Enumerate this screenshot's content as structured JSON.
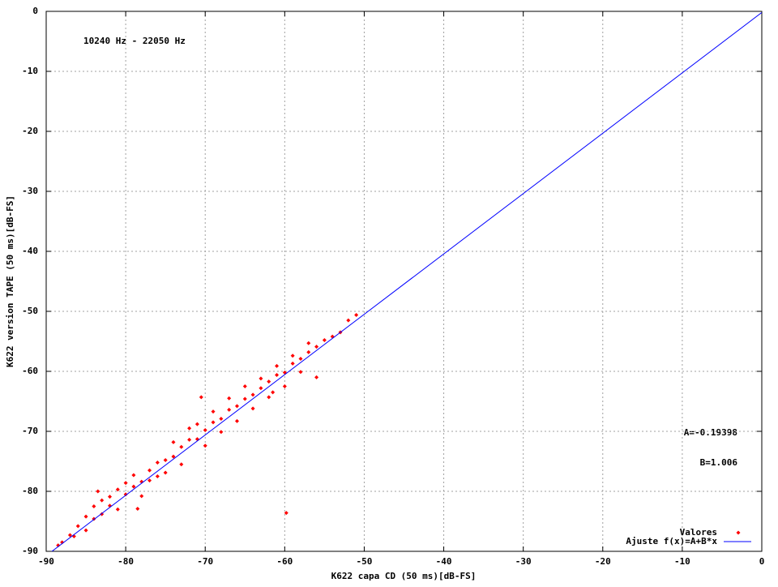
{
  "chart_data": {
    "type": "scatter",
    "xlabel": "K622 capa CD (50 ms)[dB-FS]",
    "ylabel": "K622 version TAPE (50 ms)[dB-FS]",
    "annotations": [
      "10240 Hz - 22050 Hz",
      "A=-0.19398",
      "B=1.006"
    ],
    "xlim": [
      -90,
      0
    ],
    "ylim": [
      -90,
      0
    ],
    "xticks": [
      -90,
      -80,
      -70,
      -60,
      -50,
      -40,
      -30,
      -20,
      -10,
      0
    ],
    "yticks": [
      -90,
      -80,
      -70,
      -60,
      -50,
      -40,
      -30,
      -20,
      -10,
      0
    ],
    "grid": true,
    "legend": "lower right",
    "series": [
      {
        "name": "Valores",
        "color": "#ff0000",
        "style": "points",
        "x": [
          -88,
          -87,
          -86,
          -85,
          -85,
          -84,
          -84,
          -83,
          -83,
          -82,
          -82,
          -81,
          -81,
          -80,
          -80,
          -79,
          -79,
          -78,
          -78,
          -77,
          -77,
          -76,
          -76,
          -75,
          -75,
          -74,
          -74,
          -73,
          -73,
          -72,
          -72,
          -71,
          -71,
          -70,
          -70,
          -69,
          -69,
          -68,
          -68,
          -67,
          -67,
          -66,
          -66,
          -65,
          -65,
          -64,
          -64,
          -63,
          -63,
          -62,
          -62,
          -61,
          -61,
          -60,
          -60,
          -59,
          -59,
          -58,
          -58,
          -57,
          -57,
          -56,
          -55,
          -54,
          -53,
          -51,
          -52,
          -78.5,
          -59.8,
          -83.5,
          -88.5,
          -56,
          -70.5,
          -61.5,
          -86.5
        ],
        "values": [
          -88.5,
          -87.3,
          -85.8,
          -84.2,
          -86.5,
          -82.5,
          -84.6,
          -83.8,
          -81.5,
          -82.4,
          -80.9,
          -79.7,
          -83,
          -80.5,
          -78.6,
          -79.2,
          -77.3,
          -78.4,
          -80.8,
          -76.5,
          -78.2,
          -75.2,
          -77.5,
          -74.8,
          -76.9,
          -74.2,
          -71.8,
          -72.6,
          -75.5,
          -71.4,
          -69.5,
          -71.3,
          -68.8,
          -69.8,
          -72.4,
          -68.5,
          -66.7,
          -67.9,
          -70.1,
          -66.4,
          -64.5,
          -65.8,
          -68.3,
          -64.6,
          -62.5,
          -63.9,
          -66.2,
          -62.8,
          -61.2,
          -61.7,
          -64.3,
          -60.6,
          -59.1,
          -60.2,
          -62.5,
          -58.7,
          -57.4,
          -57.9,
          -60.1,
          -56.8,
          -55.3,
          -55.9,
          -54.8,
          -54.2,
          -53.5,
          -50.6,
          -51.5,
          -82.9,
          -83.6,
          -80,
          -89,
          -61,
          -64.3,
          -63.5,
          -87.5
        ]
      },
      {
        "name": "Ajuste f(x)=A+B*x",
        "color": "#0000ff",
        "style": "line",
        "x": [
          -90,
          0
        ],
        "values": [
          -90.73,
          -0.19
        ]
      }
    ]
  }
}
